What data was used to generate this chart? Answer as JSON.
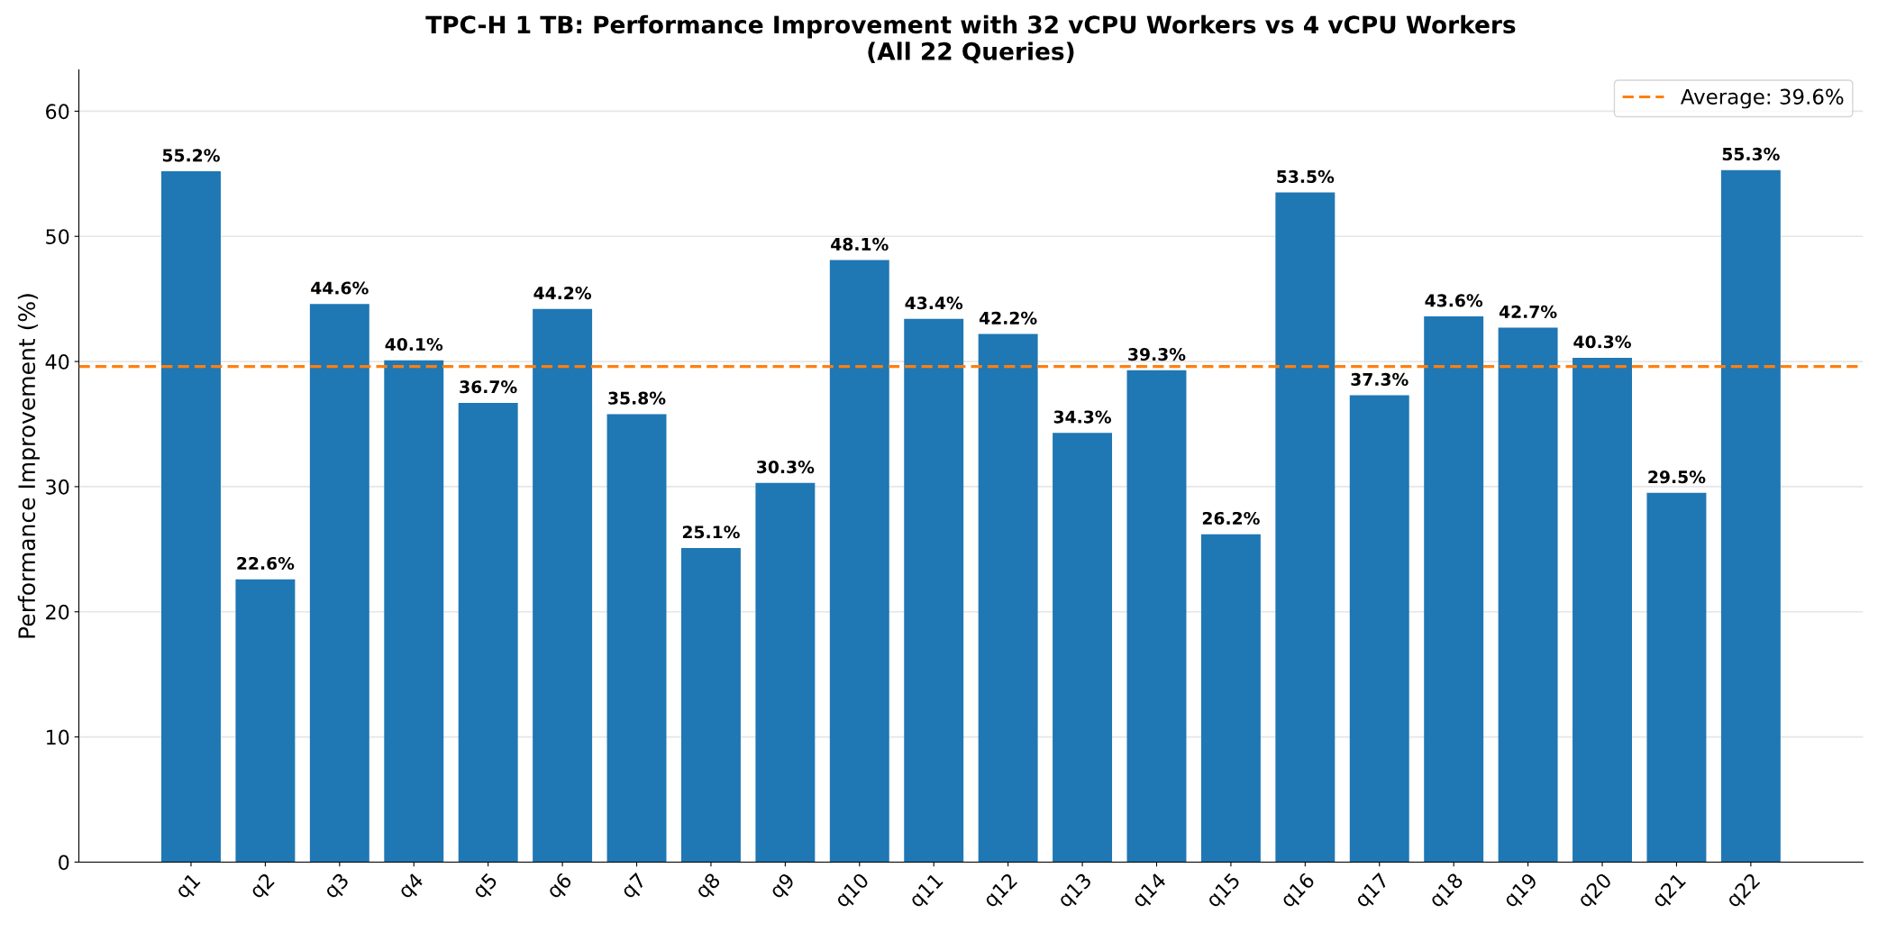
{
  "chart_data": {
    "type": "bar",
    "title": "TPC-H 1 TB: Performance Improvement with 32 vCPU Workers vs 4 vCPU Workers\n(All 22 Queries)",
    "ylabel": "Performance Improvement (%)",
    "categories": [
      "q1",
      "q2",
      "q3",
      "q4",
      "q5",
      "q6",
      "q7",
      "q8",
      "q9",
      "q10",
      "q11",
      "q12",
      "q13",
      "q14",
      "q15",
      "q16",
      "q17",
      "q18",
      "q19",
      "q20",
      "q21",
      "q22"
    ],
    "values": [
      55.2,
      22.6,
      44.6,
      40.1,
      36.7,
      44.2,
      35.8,
      25.1,
      30.3,
      48.1,
      43.4,
      42.2,
      34.3,
      39.3,
      26.2,
      53.5,
      37.3,
      43.6,
      42.7,
      40.3,
      29.5,
      55.3
    ],
    "value_labels": [
      "55.2%",
      "22.6%",
      "44.6%",
      "40.1%",
      "36.7%",
      "44.2%",
      "35.8%",
      "25.1%",
      "30.3%",
      "48.1%",
      "43.4%",
      "42.2%",
      "34.3%",
      "39.3%",
      "26.2%",
      "53.5%",
      "37.3%",
      "43.6%",
      "42.7%",
      "40.3%",
      "29.5%",
      "55.3%"
    ],
    "color": "#1f77b4",
    "ylim": [
      0,
      63.3
    ],
    "yticks": [
      0,
      10,
      20,
      30,
      40,
      50,
      60
    ],
    "grid": "y",
    "ref_lines": [
      {
        "axis": "y",
        "value": 39.6,
        "label": "Average: 39.6%",
        "color": "#ff7f0e",
        "line_style": "dashed"
      }
    ],
    "legend": "top right"
  }
}
